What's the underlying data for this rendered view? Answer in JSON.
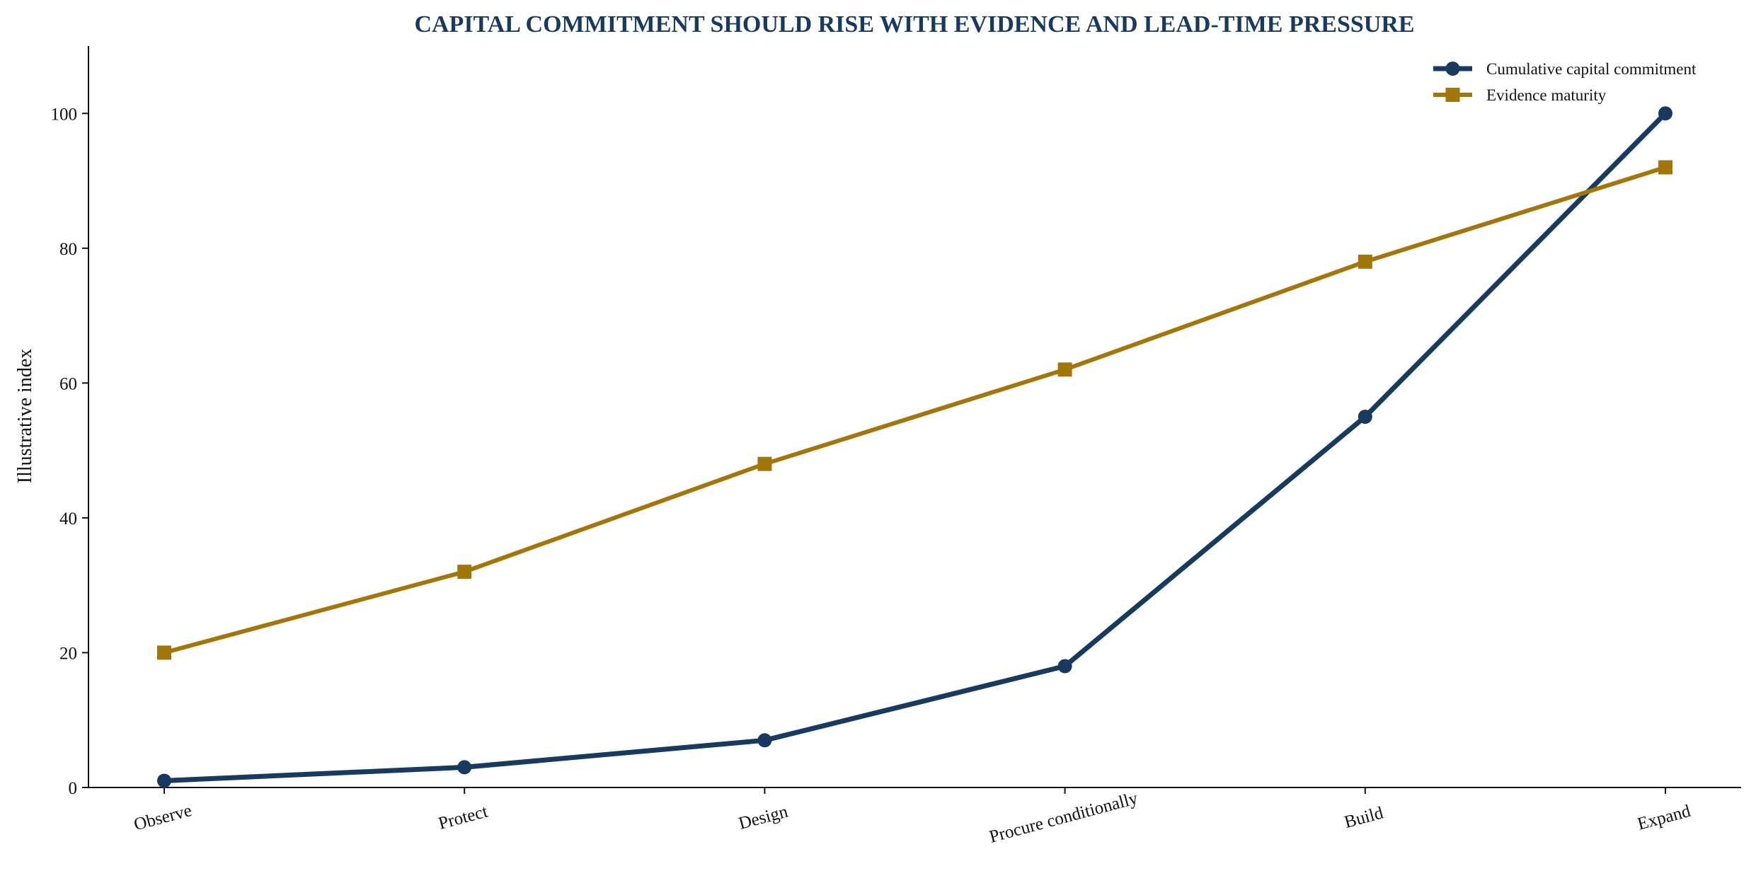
{
  "chart_data": {
    "type": "line",
    "title": "CAPITAL COMMITMENT SHOULD RISE WITH EVIDENCE AND LEAD-TIME PRESSURE",
    "xlabel": "",
    "ylabel": "Illustrative index",
    "categories": [
      "Observe",
      "Protect",
      "Design",
      "Procure conditionally",
      "Build",
      "Expand"
    ],
    "ylim": [
      0,
      110
    ],
    "yticks": [
      0,
      20,
      40,
      60,
      80,
      100
    ],
    "grid": false,
    "legend_position": "top-right",
    "series": [
      {
        "name": "Cumulative capital commitment",
        "values": [
          1,
          3,
          7,
          18,
          55,
          100
        ],
        "color": "#173a5e",
        "marker": "circle"
      },
      {
        "name": "Evidence maturity",
        "values": [
          20,
          32,
          48,
          62,
          78,
          92
        ],
        "color": "#a2760b",
        "marker": "square"
      }
    ]
  }
}
